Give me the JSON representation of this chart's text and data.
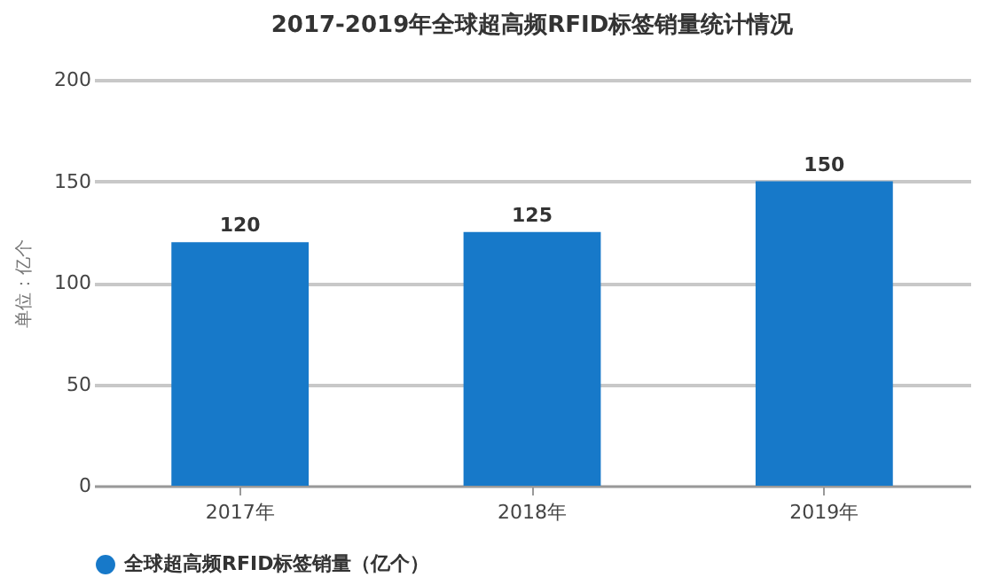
{
  "chart_data": {
    "type": "bar",
    "title": "2017-2019年全球超高频RFID标签销量统计情况",
    "ylabel": "单位：亿个",
    "categories": [
      "2017年",
      "2018年",
      "2019年"
    ],
    "series": [
      {
        "name": "全球超高频RFID标签销量（亿个）",
        "color": "#1779c9",
        "values": [
          120,
          125,
          150
        ]
      }
    ],
    "ylim": [
      0,
      200
    ],
    "yticks": [
      0,
      50,
      100,
      150,
      200
    ],
    "grid": "y",
    "legend": "bottom",
    "data_labels": true
  }
}
